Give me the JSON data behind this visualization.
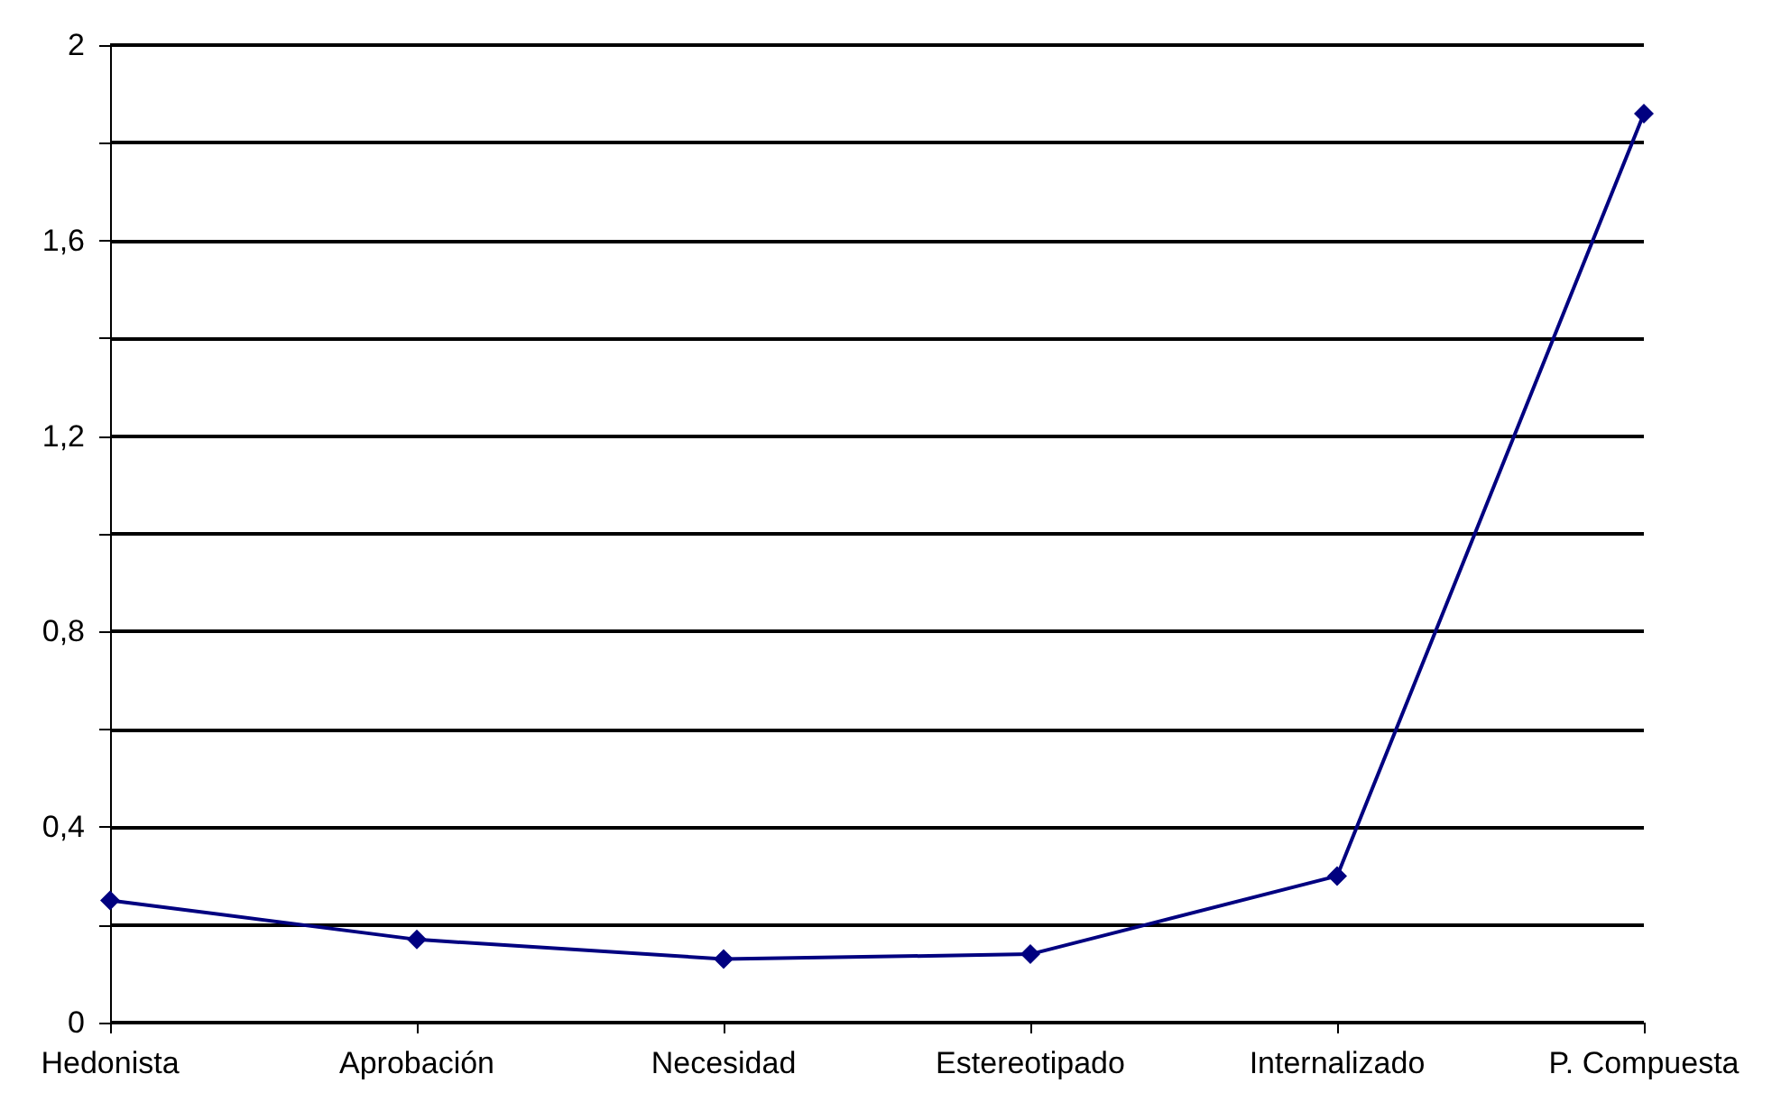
{
  "chart_data": {
    "type": "line",
    "categories": [
      "Hedonista",
      "Aprobación",
      "Necesidad",
      "Estereotipado",
      "Internalizado",
      "P. Compuesta"
    ],
    "series": [
      {
        "color": "#000080",
        "values": [
          0.25,
          0.17,
          0.13,
          0.14,
          0.3,
          1.86
        ]
      }
    ],
    "ylim": [
      0,
      2
    ],
    "yticks": [
      0,
      {
        "value": 0.2,
        "label": null
      },
      {
        "value": 0.4,
        "label": "0,4"
      },
      {
        "value": 0.6,
        "label": null
      },
      {
        "value": 0.8,
        "label": "0,8"
      },
      {
        "value": 1,
        "label": null
      },
      {
        "value": 1.2,
        "label": "1,2"
      },
      {
        "value": 1.4,
        "label": null
      },
      {
        "value": 1.6,
        "label": "1,6"
      },
      {
        "value": 1.8,
        "label": null
      },
      2
    ],
    "grid": "y",
    "marker": "diamond",
    "line_style": "solid"
  }
}
